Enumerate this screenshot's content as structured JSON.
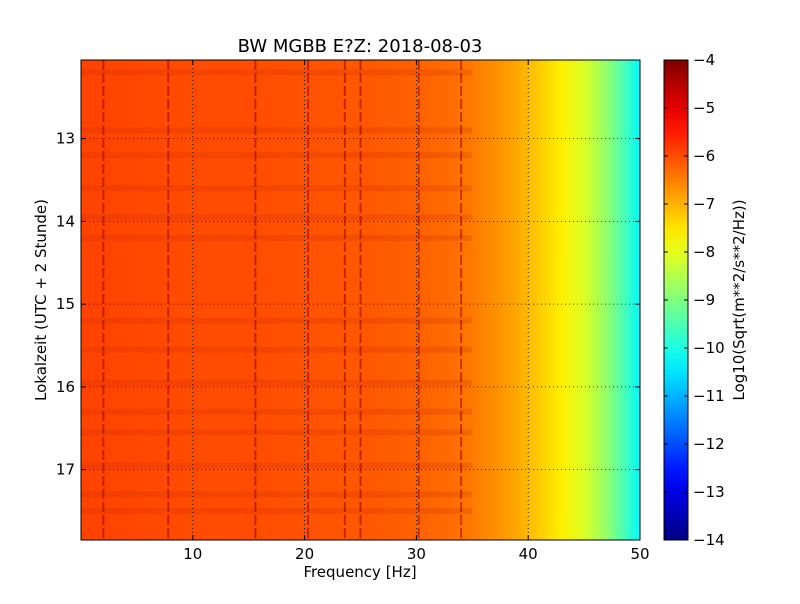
{
  "chart_data": {
    "type": "heatmap",
    "title": "BW MGBB E?Z: 2018-08-03",
    "xlabel": "Frequency [Hz]",
    "ylabel": "Lokalzeit (UTC + 2 Stunde)",
    "colorbar_label": "Log10(Sqrt(m**2/s**2/Hz))",
    "xlim": [
      0,
      50
    ],
    "ylim": [
      12.05,
      17.85
    ],
    "y_inverted": true,
    "x_ticks": [
      10,
      20,
      30,
      40,
      50
    ],
    "x_tick_labels": [
      "10",
      "20",
      "30",
      "40",
      "50"
    ],
    "y_ticks": [
      13,
      14,
      15,
      16,
      17
    ],
    "y_tick_labels": [
      "13",
      "14",
      "15",
      "16",
      "17"
    ],
    "colorbar_range": [
      -14,
      -4
    ],
    "colorbar_ticks": [
      -4,
      -5,
      -6,
      -7,
      -8,
      -9,
      -10,
      -11,
      -12,
      -13,
      -14
    ],
    "colorbar_tick_labels": [
      "−4",
      "−5",
      "−6",
      "−7",
      "−8",
      "−9",
      "−10",
      "−11",
      "−12",
      "−13",
      "−14"
    ],
    "colormap": "jet",
    "grid": true,
    "grid_style": "dotted",
    "frequency_profile": {
      "frequency_hz": [
        0,
        5,
        10,
        15,
        20,
        25,
        28,
        30,
        33,
        35,
        37,
        39,
        41,
        43,
        45,
        47,
        48.5,
        50
      ],
      "level": [
        -5.9,
        -5.95,
        -6.0,
        -6.0,
        -6.05,
        -6.1,
        -6.15,
        -6.2,
        -6.3,
        -6.45,
        -6.65,
        -6.9,
        -7.25,
        -7.6,
        -8.1,
        -8.8,
        -9.5,
        -10.3
      ]
    },
    "spectral_lines_hz": [
      2.0,
      7.8,
      15.6,
      20.3,
      23.6,
      25.0,
      30.2,
      34.0
    ],
    "event_times": [
      12.2,
      12.9,
      13.2,
      13.6,
      13.95,
      14.2,
      15.2,
      15.55,
      15.95,
      16.3,
      16.55,
      16.95,
      17.3,
      17.5
    ]
  }
}
